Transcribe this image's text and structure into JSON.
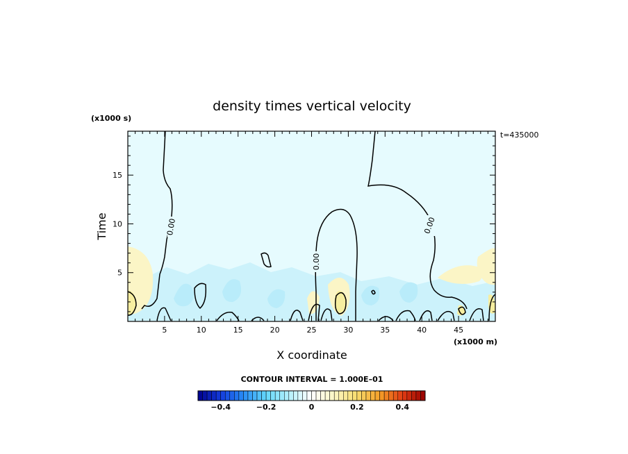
{
  "chart_data": {
    "type": "contour",
    "title": "density times vertical velocity",
    "xlabel": "X coordinate",
    "ylabel": "Time",
    "x_unit": "(x1000 m)",
    "y_unit": "(x1000 s)",
    "time_stamp": "t=435000",
    "xlim": [
      0,
      50
    ],
    "ylim": [
      0,
      19.5
    ],
    "x_ticks": [
      5,
      10,
      15,
      20,
      25,
      30,
      35,
      40,
      45
    ],
    "y_ticks": [
      5,
      10,
      15
    ],
    "contour_labels": [
      "0.00",
      "0.00",
      "0.00"
    ],
    "contour_interval_text": "CONTOUR INTERVAL = 1.000E–01",
    "colorbar": {
      "min": -0.5,
      "max": 0.5,
      "ticks": [
        -0.4,
        -0.2,
        0,
        0.2,
        0.4
      ],
      "tick_labels": [
        "−0.4",
        "−0.2",
        "0",
        "0.2",
        "0.4"
      ]
    }
  }
}
